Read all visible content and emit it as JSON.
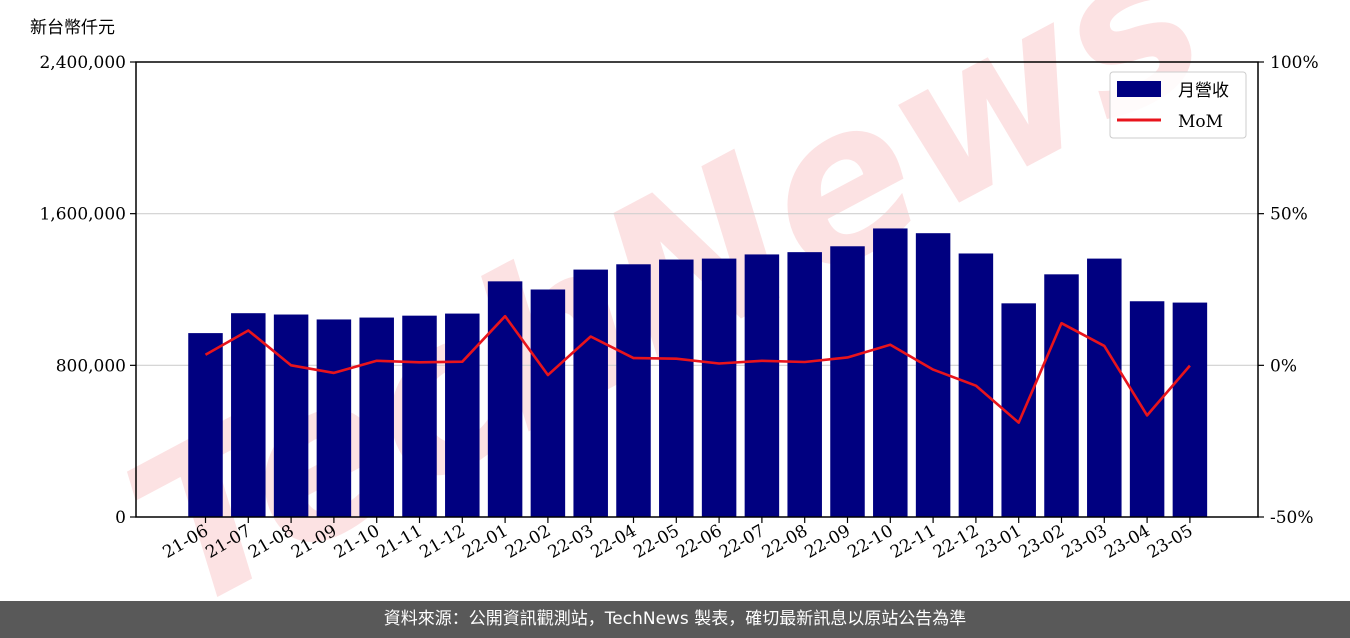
{
  "chart_data": {
    "type": "bar",
    "y_unit_label": "新台幣仟元",
    "categories": [
      "21-06",
      "21-07",
      "21-08",
      "21-09",
      "21-10",
      "21-11",
      "21-12",
      "22-01",
      "22-02",
      "22-03",
      "22-04",
      "22-05",
      "22-06",
      "22-07",
      "22-08",
      "22-09",
      "22-10",
      "22-11",
      "22-12",
      "23-01",
      "23-02",
      "23-03",
      "23-04",
      "23-05"
    ],
    "series": [
      {
        "name": "月營收",
        "type": "bar",
        "axis": "left",
        "color": "#000080",
        "values": [
          970000,
          1075000,
          1068000,
          1042000,
          1052000,
          1062000,
          1073000,
          1243000,
          1200000,
          1305000,
          1333000,
          1358000,
          1363000,
          1385000,
          1397000,
          1428000,
          1522000,
          1497000,
          1390000,
          1127000,
          1280000,
          1363000,
          1138000,
          1131000
        ]
      },
      {
        "name": "MoM",
        "type": "line",
        "axis": "right",
        "color": "#e8141c",
        "values": [
          3.5,
          11.5,
          0,
          -2.5,
          1.5,
          1,
          1.2,
          16.2,
          -3.2,
          9.5,
          2.4,
          2.2,
          0.6,
          1.5,
          1.1,
          2.6,
          6.8,
          -1.4,
          -6.7,
          -18.9,
          13.9,
          6.4,
          -16.5,
          -0.1
        ]
      }
    ],
    "y_left": {
      "min": 0,
      "max": 2400000,
      "ticks": [
        "0",
        "800,000",
        "1,600,000",
        "2,400,000"
      ],
      "tick_values": [
        0,
        800000,
        1600000,
        2400000
      ]
    },
    "y_right": {
      "min": -50,
      "max": 100,
      "ticks": [
        "-50%",
        "0%",
        "50%",
        "100%"
      ],
      "tick_values": [
        -50,
        0,
        50,
        100
      ]
    },
    "grid": "horizontal",
    "legend_position": "top-right",
    "watermark": "TechNews",
    "footer": "資料來源：公開資訊觀測站，TechNews 製表，確切最新訊息以原站公告為準"
  }
}
